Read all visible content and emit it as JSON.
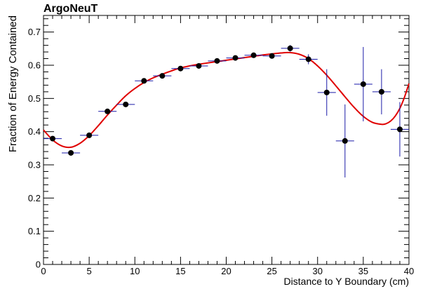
{
  "chart_data": {
    "type": "scatter",
    "title": "ArgoNeuT",
    "xlabel": "Distance to Y Boundary (cm)",
    "ylabel": "Fraction of Energy Contained",
    "xlim": [
      0,
      40
    ],
    "ylim": [
      0,
      0.75
    ],
    "grid": false,
    "x_ticks": [
      0,
      5,
      10,
      15,
      20,
      25,
      30,
      35,
      40
    ],
    "x_tick_labels": [
      "0",
      "5",
      "10",
      "15",
      "20",
      "25",
      "30",
      "35",
      "40"
    ],
    "y_ticks": [
      0,
      0.1,
      0.2,
      0.3,
      0.4,
      0.5,
      0.6,
      0.7
    ],
    "y_tick_labels": [
      "0",
      "0.1",
      "0.2",
      "0.3",
      "0.4",
      "0.5",
      "0.6",
      "0.7"
    ],
    "colors": {
      "points": "#000000",
      "error_bars": "#1a1aa8",
      "fit": "#e00000"
    },
    "series": [
      {
        "type": "scatter",
        "x_err": 1,
        "points": [
          {
            "x": 1,
            "y": 0.379,
            "yerr": 0.008
          },
          {
            "x": 3,
            "y": 0.336,
            "yerr": 0.008
          },
          {
            "x": 5,
            "y": 0.389,
            "yerr": 0.008
          },
          {
            "x": 7,
            "y": 0.461,
            "yerr": 0.008
          },
          {
            "x": 9,
            "y": 0.482,
            "yerr": 0.006
          },
          {
            "x": 11,
            "y": 0.553,
            "yerr": 0.006
          },
          {
            "x": 13,
            "y": 0.568,
            "yerr": 0.006
          },
          {
            "x": 15,
            "y": 0.59,
            "yerr": 0.006
          },
          {
            "x": 17,
            "y": 0.598,
            "yerr": 0.006
          },
          {
            "x": 19,
            "y": 0.613,
            "yerr": 0.006
          },
          {
            "x": 21,
            "y": 0.622,
            "yerr": 0.006
          },
          {
            "x": 23,
            "y": 0.63,
            "yerr": 0.006
          },
          {
            "x": 25,
            "y": 0.628,
            "yerr": 0.008
          },
          {
            "x": 27,
            "y": 0.651,
            "yerr": 0.01
          },
          {
            "x": 29,
            "y": 0.618,
            "yerr": 0.015
          },
          {
            "x": 31,
            "y": 0.518,
            "yerr": 0.07
          },
          {
            "x": 33,
            "y": 0.372,
            "yerr": 0.11
          },
          {
            "x": 35,
            "y": 0.543,
            "yerr": 0.112
          },
          {
            "x": 37,
            "y": 0.52,
            "yerr": 0.068
          },
          {
            "x": 39,
            "y": 0.407,
            "yerr": 0.082
          }
        ]
      },
      {
        "type": "line",
        "points": [
          {
            "x": 0,
            "y": 0.405
          },
          {
            "x": 1,
            "y": 0.375
          },
          {
            "x": 2,
            "y": 0.357
          },
          {
            "x": 3,
            "y": 0.353
          },
          {
            "x": 4,
            "y": 0.365
          },
          {
            "x": 5,
            "y": 0.388
          },
          {
            "x": 6,
            "y": 0.418
          },
          {
            "x": 7,
            "y": 0.45
          },
          {
            "x": 8,
            "y": 0.48
          },
          {
            "x": 9,
            "y": 0.508
          },
          {
            "x": 10,
            "y": 0.53
          },
          {
            "x": 11,
            "y": 0.548
          },
          {
            "x": 12,
            "y": 0.562
          },
          {
            "x": 13,
            "y": 0.573
          },
          {
            "x": 14,
            "y": 0.583
          },
          {
            "x": 15,
            "y": 0.592
          },
          {
            "x": 16,
            "y": 0.598
          },
          {
            "x": 17,
            "y": 0.603
          },
          {
            "x": 18,
            "y": 0.607
          },
          {
            "x": 19,
            "y": 0.611
          },
          {
            "x": 20,
            "y": 0.615
          },
          {
            "x": 21,
            "y": 0.619
          },
          {
            "x": 22,
            "y": 0.623
          },
          {
            "x": 23,
            "y": 0.627
          },
          {
            "x": 24,
            "y": 0.631
          },
          {
            "x": 25,
            "y": 0.634
          },
          {
            "x": 26,
            "y": 0.637
          },
          {
            "x": 27,
            "y": 0.638
          },
          {
            "x": 28,
            "y": 0.633
          },
          {
            "x": 29,
            "y": 0.62
          },
          {
            "x": 30,
            "y": 0.598
          },
          {
            "x": 31,
            "y": 0.57
          },
          {
            "x": 32,
            "y": 0.538
          },
          {
            "x": 33,
            "y": 0.505
          },
          {
            "x": 34,
            "y": 0.473
          },
          {
            "x": 35,
            "y": 0.446
          },
          {
            "x": 36,
            "y": 0.428
          },
          {
            "x": 37,
            "y": 0.422
          },
          {
            "x": 37.5,
            "y": 0.424
          },
          {
            "x": 38,
            "y": 0.432
          },
          {
            "x": 38.5,
            "y": 0.447
          },
          {
            "x": 39,
            "y": 0.47
          },
          {
            "x": 39.5,
            "y": 0.503
          },
          {
            "x": 40,
            "y": 0.545
          }
        ]
      }
    ]
  }
}
